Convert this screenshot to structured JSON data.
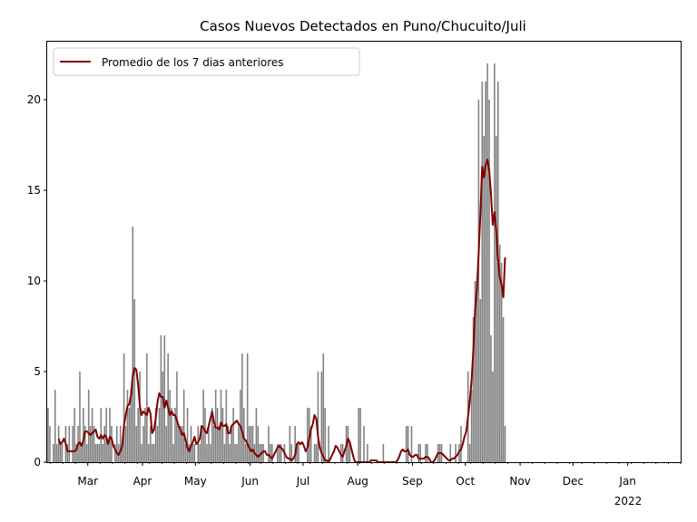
{
  "chart_data": {
    "type": "bar",
    "title": "Casos Nuevos Detectados en Puno/Chucuito/Juli",
    "xlabel": "",
    "ylabel": "",
    "ylim": [
      0,
      23.2
    ],
    "yticks": [
      0,
      5,
      10,
      15,
      20
    ],
    "xlim": [
      "2021-02-06",
      "2022-01-31"
    ],
    "xticks": [
      {
        "date": "2021-03-01",
        "label": "Mar"
      },
      {
        "date": "2021-04-01",
        "label": "Apr"
      },
      {
        "date": "2021-05-01",
        "label": "May"
      },
      {
        "date": "2021-06-01",
        "label": "Jun"
      },
      {
        "date": "2021-07-01",
        "label": "Jul"
      },
      {
        "date": "2021-08-01",
        "label": "Aug"
      },
      {
        "date": "2021-09-01",
        "label": "Sep"
      },
      {
        "date": "2021-10-01",
        "label": "Oct"
      },
      {
        "date": "2021-11-01",
        "label": "Nov"
      },
      {
        "date": "2021-12-01",
        "label": "Dec"
      },
      {
        "date": "2022-01-01",
        "label": "Jan"
      }
    ],
    "year_label": "2022",
    "legend": {
      "position": "top-left",
      "entries": [
        "Promedio de los 7 dias anteriores"
      ]
    },
    "grid": false,
    "bar_color": "#808080",
    "line_color": "#800000",
    "daily_values": [
      3,
      2,
      0,
      1,
      4,
      1,
      2,
      1,
      1,
      0,
      2,
      1,
      2,
      0,
      2,
      3,
      1,
      2,
      5,
      1,
      3,
      2,
      1,
      4,
      2,
      3,
      2,
      1,
      1,
      1,
      3,
      1,
      2,
      3,
      1,
      3,
      2,
      0,
      1,
      2,
      1,
      2,
      1,
      6,
      2,
      4,
      3,
      4,
      13,
      9,
      2,
      3,
      5,
      1,
      2,
      3,
      6,
      1,
      2,
      1,
      1,
      3,
      2,
      3,
      7,
      5,
      7,
      2,
      6,
      4,
      3,
      1,
      3,
      5,
      2,
      2,
      2,
      4,
      1,
      3,
      1,
      2,
      1,
      1,
      0,
      2,
      1,
      2,
      4,
      3,
      1,
      2,
      1,
      3,
      2,
      4,
      3,
      2,
      4,
      3,
      1,
      4,
      2,
      1,
      2,
      3,
      1,
      1,
      2,
      4,
      6,
      3,
      1,
      6,
      2,
      2,
      2,
      1,
      3,
      2,
      1,
      1,
      1,
      0,
      0,
      2,
      1,
      1,
      0,
      0,
      1,
      1,
      1,
      0,
      1,
      0,
      0,
      2,
      1,
      0,
      2,
      1,
      1,
      0,
      0,
      0,
      0,
      3,
      3,
      2,
      0,
      1,
      1,
      5,
      0,
      5,
      6,
      3,
      0,
      2,
      0,
      0,
      0,
      0,
      0,
      0,
      1,
      1,
      0,
      2,
      2,
      1,
      0,
      0,
      0,
      0,
      3,
      3,
      0,
      2,
      0,
      1,
      0,
      0,
      0,
      0,
      0,
      0,
      0,
      0,
      1,
      0,
      0,
      0,
      0,
      0,
      0,
      0,
      0,
      0,
      0,
      0,
      0,
      2,
      2,
      0,
      2,
      0,
      0,
      0,
      1,
      1,
      0,
      0,
      1,
      1,
      0,
      0,
      0,
      0,
      0,
      1,
      1,
      1,
      0,
      0,
      0,
      0,
      1,
      0,
      0,
      1,
      0,
      1,
      2,
      0,
      0,
      0,
      5,
      1,
      4,
      8,
      10,
      10,
      20,
      9,
      21,
      18,
      21,
      22,
      20,
      7,
      5,
      22,
      18,
      21,
      12,
      11,
      8,
      2
    ],
    "series": [
      {
        "name": "Promedio de los 7 dias anteriores",
        "type": "line",
        "values": [
          null,
          null,
          null,
          null,
          null,
          null,
          1.3,
          1.0,
          1.1,
          1.3,
          1.0,
          0.6,
          0.6,
          0.6,
          0.6,
          0.6,
          0.7,
          1.0,
          1.1,
          0.9,
          1.2,
          1.7,
          1.7,
          1.6,
          1.5,
          1.6,
          1.7,
          1.8,
          1.4,
          1.3,
          1.5,
          1.3,
          1.5,
          1.4,
          1.0,
          1.4,
          1.3,
          0.9,
          0.7,
          0.5,
          0.4,
          0.6,
          0.9,
          2.0,
          2.6,
          3.1,
          3.2,
          3.7,
          4.8,
          5.2,
          5.1,
          4.3,
          3.1,
          2.6,
          2.8,
          2.7,
          2.6,
          3.0,
          2.7,
          1.6,
          1.8,
          2.4,
          3.3,
          3.8,
          3.6,
          3.6,
          3.0,
          3.4,
          3.0,
          2.6,
          2.8,
          2.6,
          2.6,
          2.3,
          2.0,
          1.8,
          1.5,
          1.6,
          1.2,
          0.8,
          0.6,
          0.9,
          1.1,
          1.4,
          1.0,
          1.1,
          1.3,
          2.0,
          1.9,
          1.7,
          1.6,
          2.0,
          2.4,
          2.8,
          2.2,
          1.9,
          1.9,
          1.8,
          2.2,
          2.0,
          2.0,
          2.1,
          1.6,
          1.6,
          2.0,
          2.1,
          2.2,
          2.3,
          2.1,
          2.0,
          1.7,
          1.3,
          1.2,
          1.0,
          0.8,
          0.6,
          0.7,
          0.5,
          0.4,
          0.3,
          0.4,
          0.5,
          0.6,
          0.6,
          0.4,
          0.4,
          0.3,
          0.2,
          0.4,
          0.6,
          0.8,
          0.9,
          0.8,
          0.7,
          0.5,
          0.3,
          0.2,
          0.2,
          0.1,
          0.2,
          0.4,
          1.0,
          1.1,
          1.0,
          1.1,
          0.9,
          0.6,
          0.8,
          1.3,
          1.8,
          2.1,
          2.6,
          2.4,
          1.4,
          0.8,
          0.5,
          0.3,
          0.1,
          0.1,
          0.0,
          0.2,
          0.4,
          0.6,
          0.9,
          0.8,
          0.6,
          0.4,
          0.3,
          0.6,
          0.9,
          1.3,
          1.1,
          0.7,
          0.3,
          0.0,
          0.0,
          0.0,
          0.0,
          0.0,
          0.0,
          0.0,
          0.0,
          0.0,
          0.1,
          0.1,
          0.1,
          0.1,
          0.0,
          0.0,
          0.0,
          0.0,
          0.0,
          0.0,
          0.0,
          0.0,
          0.0,
          0.0,
          0.0,
          0.1,
          0.3,
          0.6,
          0.7,
          0.6,
          0.6,
          0.7,
          0.4,
          0.3,
          0.3,
          0.4,
          0.4,
          0.2,
          0.2,
          0.2,
          0.2,
          0.3,
          0.3,
          0.2,
          0.0,
          0.0,
          0.1,
          0.3,
          0.5,
          0.5,
          0.5,
          0.4,
          0.3,
          0.2,
          0.1,
          0.1,
          0.2,
          0.2,
          0.3,
          0.4,
          0.6,
          0.7,
          1.0,
          1.4,
          1.7,
          2.5,
          3.4,
          4.5,
          6.2,
          8.4,
          9.5,
          11.5,
          13.7,
          16.3,
          15.7,
          16.4,
          16.7,
          16.1,
          14.8,
          13.1,
          13.8,
          12.8,
          11.2,
          10.2,
          9.8,
          9.1,
          11.3
        ]
      }
    ]
  }
}
